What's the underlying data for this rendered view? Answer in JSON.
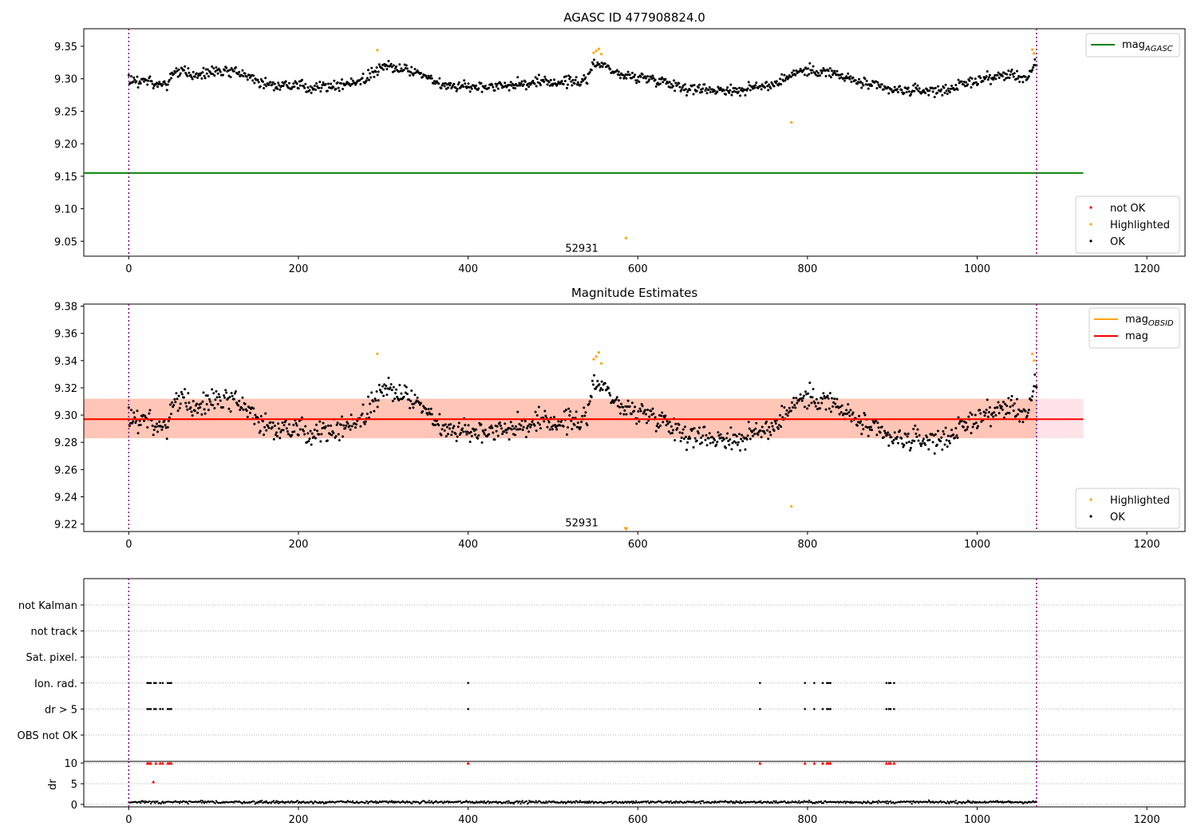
{
  "chart_data": [
    {
      "type": "scatter",
      "title": "AGASC ID 477908824.0",
      "xlabel": "",
      "ylabel": "",
      "xlim": [
        -53,
        1245
      ],
      "ylim": [
        9.027,
        9.377
      ],
      "xticks": [
        0,
        200,
        400,
        600,
        800,
        1000,
        1200
      ],
      "yticks": [
        9.05,
        9.1,
        9.15,
        9.2,
        9.25,
        9.3,
        9.35
      ],
      "ytick_labels": [
        "9.05",
        "9.10",
        "9.15",
        "9.20",
        "9.25",
        "9.30",
        "9.35"
      ],
      "series": [
        {
          "name": "mag_AGASC",
          "kind": "hline",
          "y": 9.155,
          "x_range": [
            -53,
            1125
          ],
          "color": "#008000"
        },
        {
          "name": "not OK",
          "kind": "points",
          "color": "#ff0000",
          "points": []
        },
        {
          "name": "Highlighted",
          "kind": "points",
          "color": "#ffa500",
          "points": [
            [
              293,
              9.344
            ],
            [
              548,
              9.34
            ],
            [
              551,
              9.343
            ],
            [
              554,
              9.346
            ],
            [
              557,
              9.338
            ],
            [
              586,
              9.055
            ],
            [
              781,
              9.233
            ],
            [
              1065,
              9.345
            ],
            [
              1067,
              9.339
            ]
          ]
        },
        {
          "name": "OK",
          "kind": "points",
          "color": "#000000",
          "profile": [
            [
              0,
              9.296
            ],
            [
              20,
              9.297
            ],
            [
              45,
              9.29
            ],
            [
              55,
              9.312
            ],
            [
              80,
              9.305
            ],
            [
              110,
              9.312
            ],
            [
              140,
              9.305
            ],
            [
              160,
              9.292
            ],
            [
              200,
              9.288
            ],
            [
              250,
              9.29
            ],
            [
              280,
              9.3
            ],
            [
              300,
              9.322
            ],
            [
              340,
              9.31
            ],
            [
              370,
              9.29
            ],
            [
              420,
              9.288
            ],
            [
              460,
              9.292
            ],
            [
              500,
              9.295
            ],
            [
              540,
              9.296
            ],
            [
              548,
              9.325
            ],
            [
              560,
              9.322
            ],
            [
              580,
              9.305
            ],
            [
              620,
              9.3
            ],
            [
              660,
              9.285
            ],
            [
              720,
              9.282
            ],
            [
              760,
              9.292
            ],
            [
              790,
              9.312
            ],
            [
              820,
              9.312
            ],
            [
              860,
              9.295
            ],
            [
              900,
              9.282
            ],
            [
              960,
              9.282
            ],
            [
              1000,
              9.298
            ],
            [
              1040,
              9.307
            ],
            [
              1060,
              9.3
            ],
            [
              1070,
              9.325
            ]
          ],
          "x_range": [
            0,
            1070
          ],
          "count": 1070,
          "scatter": 0.008
        }
      ],
      "vlines": [
        0,
        1070
      ],
      "annotation": {
        "text": "52931",
        "x": 534,
        "y": 9.04
      },
      "legend_top": {
        "position": "top-right",
        "entries": [
          {
            "label": "mag",
            "subscript": "AGASC",
            "color": "#008000"
          }
        ]
      },
      "legend_bottom": {
        "position": "lower-right",
        "entries": [
          {
            "label": "not OK",
            "color": "#ff0000"
          },
          {
            "label": "Highlighted",
            "color": "#ffa500"
          },
          {
            "label": "OK",
            "color": "#000000"
          }
        ]
      }
    },
    {
      "type": "scatter",
      "title": "Magnitude Estimates",
      "xlabel": "",
      "ylabel": "",
      "xlim": [
        -53,
        1245
      ],
      "ylim": [
        9.2145,
        9.3815
      ],
      "xticks": [
        0,
        200,
        400,
        600,
        800,
        1000,
        1200
      ],
      "yticks": [
        9.22,
        9.24,
        9.26,
        9.28,
        9.3,
        9.32,
        9.34,
        9.36,
        9.38
      ],
      "ytick_labels": [
        "9.22",
        "9.24",
        "9.26",
        "9.28",
        "9.30",
        "9.32",
        "9.34",
        "9.36",
        "9.38"
      ],
      "bands": [
        {
          "y": [
            9.283,
            9.312
          ],
          "x_range": [
            -53,
            1125
          ],
          "color": "#ffc0cb",
          "opacity": 0.45
        },
        {
          "y": [
            9.283,
            9.312
          ],
          "x_range": [
            -53,
            1070
          ],
          "color": "#ffa07a",
          "opacity": 0.45
        }
      ],
      "series": [
        {
          "name": "mag_OBSID",
          "kind": "hline",
          "y": 9.297,
          "x_range": [
            -53,
            1070
          ],
          "color": "#ffa500"
        },
        {
          "name": "mag",
          "kind": "hline",
          "y": 9.297,
          "x_range": [
            -53,
            1125
          ],
          "color": "#ff0000"
        },
        {
          "name": "Highlighted",
          "kind": "points",
          "color": "#ffa500",
          "points": [
            [
              293,
              9.345
            ],
            [
              548,
              9.341
            ],
            [
              551,
              9.343
            ],
            [
              554,
              9.346
            ],
            [
              557,
              9.338
            ],
            [
              781,
              9.233
            ],
            [
              1065,
              9.345
            ],
            [
              1067,
              9.34
            ]
          ],
          "clipped_markers": [
            [
              586,
              9.216
            ]
          ]
        },
        {
          "name": "OK",
          "kind": "points",
          "color": "#000000",
          "profile": [
            [
              0,
              9.296
            ],
            [
              20,
              9.297
            ],
            [
              45,
              9.29
            ],
            [
              55,
              9.312
            ],
            [
              80,
              9.305
            ],
            [
              110,
              9.312
            ],
            [
              140,
              9.305
            ],
            [
              160,
              9.292
            ],
            [
              200,
              9.288
            ],
            [
              250,
              9.29
            ],
            [
              280,
              9.3
            ],
            [
              300,
              9.322
            ],
            [
              340,
              9.31
            ],
            [
              370,
              9.29
            ],
            [
              420,
              9.288
            ],
            [
              460,
              9.292
            ],
            [
              500,
              9.295
            ],
            [
              540,
              9.296
            ],
            [
              548,
              9.325
            ],
            [
              560,
              9.322
            ],
            [
              580,
              9.305
            ],
            [
              620,
              9.3
            ],
            [
              660,
              9.285
            ],
            [
              720,
              9.282
            ],
            [
              760,
              9.292
            ],
            [
              790,
              9.312
            ],
            [
              820,
              9.312
            ],
            [
              860,
              9.295
            ],
            [
              900,
              9.282
            ],
            [
              960,
              9.282
            ],
            [
              1000,
              9.298
            ],
            [
              1040,
              9.307
            ],
            [
              1060,
              9.3
            ],
            [
              1070,
              9.325
            ]
          ],
          "x_range": [
            0,
            1070
          ],
          "count": 1070,
          "scatter": 0.008
        }
      ],
      "vlines": [
        0,
        1070
      ],
      "annotation": {
        "text": "52931",
        "x": 534,
        "y": 9.219
      },
      "legend_top": {
        "position": "top-right",
        "entries": [
          {
            "label": "mag",
            "subscript": "OBSID",
            "color": "#ffa500"
          },
          {
            "label": "mag",
            "subscript": "",
            "color": "#ff0000"
          }
        ]
      },
      "legend_bottom": {
        "position": "lower-right",
        "entries": [
          {
            "label": "Highlighted",
            "color": "#ffa500"
          },
          {
            "label": "OK",
            "color": "#000000"
          }
        ]
      }
    },
    {
      "type": "scatter",
      "title": "",
      "xlabel": "",
      "ylabel": "",
      "xlim": [
        -53,
        1245
      ],
      "categories": [
        "OBS not OK",
        "dr > 5",
        "Ion. rad.",
        "Sat. pixel.",
        "not track",
        "not Kalman"
      ],
      "category_flags": {
        "dr > 5": [
          22,
          24,
          26,
          30,
          32,
          37,
          40,
          46,
          48,
          50,
          400,
          744,
          797,
          808,
          818,
          823,
          825,
          827,
          893,
          896,
          898,
          902
        ],
        "Ion. rad.": [
          22,
          24,
          26,
          30,
          32,
          37,
          40,
          46,
          48,
          50,
          400,
          744,
          797,
          808,
          818,
          823,
          825,
          827,
          893,
          896,
          898,
          902
        ]
      }
    },
    {
      "type": "scatter",
      "title": "",
      "xlabel": "",
      "ylabel": "dr",
      "xlim": [
        -53,
        1245
      ],
      "xticks": [
        0,
        200,
        400,
        600,
        800,
        1000,
        1200
      ],
      "yticks": [
        0,
        5,
        10
      ],
      "ylim": [
        -0.6,
        10.4
      ],
      "series": [
        {
          "name": "dr",
          "kind": "trace",
          "color": "#000000",
          "x_range": [
            0,
            1070
          ],
          "level": 0.55,
          "scatter": 0.3
        },
        {
          "name": "dr clipped",
          "kind": "points",
          "color": "#ff0000",
          "points": [
            [
              22,
              10
            ],
            [
              24,
              10
            ],
            [
              26,
              10
            ],
            [
              32,
              10
            ],
            [
              37,
              10
            ],
            [
              40,
              10
            ],
            [
              46,
              10
            ],
            [
              48,
              10
            ],
            [
              50,
              10
            ],
            [
              400,
              10
            ],
            [
              744,
              10
            ],
            [
              797,
              10
            ],
            [
              808,
              10
            ],
            [
              818,
              10
            ],
            [
              823,
              10
            ],
            [
              825,
              10
            ],
            [
              827,
              10
            ],
            [
              893,
              10
            ],
            [
              896,
              10
            ],
            [
              898,
              10
            ],
            [
              902,
              10
            ],
            [
              29,
              5.5
            ]
          ]
        }
      ],
      "vlines": [
        0,
        1070
      ]
    }
  ]
}
